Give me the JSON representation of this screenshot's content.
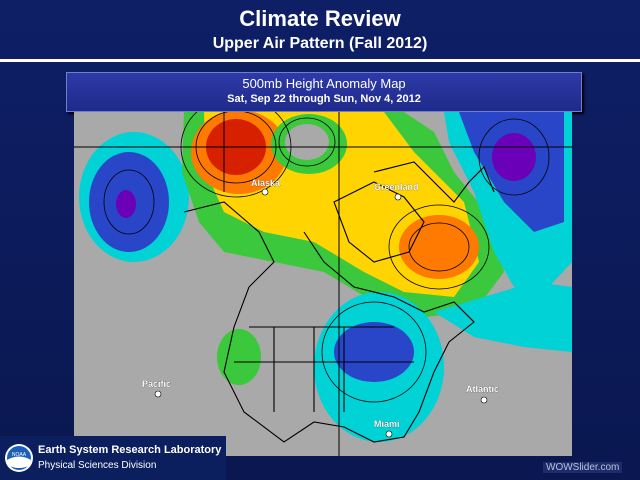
{
  "slide": {
    "title": "Climate Review",
    "subtitle": "Upper Air Pattern (Fall 2012)"
  },
  "map_header": {
    "title": "500mb Height Anomaly Map",
    "date_range": "Sat, Sep 22 through Sun, Nov 4, 2012"
  },
  "map": {
    "labels": {
      "alaska": "Alaska",
      "greenland": "Greenland",
      "pacific": "Pacific",
      "atlantic": "Atlantic",
      "miami": "Miami"
    },
    "colors": {
      "neutral": "#a9a9a9",
      "light_positive": "#3cc83c",
      "positive": "#ffd400",
      "strong_positive": "#ff7a00",
      "max_positive": "#d62000",
      "negative": "#00d2d6",
      "strong_negative": "#2a46c8",
      "max_negative": "#6a00b8"
    }
  },
  "footer": {
    "logo_text": "NOAA",
    "org": "Earth System Research Laboratory",
    "division": "Physical Sciences Division"
  },
  "watermark": "WOWSlider.com"
}
